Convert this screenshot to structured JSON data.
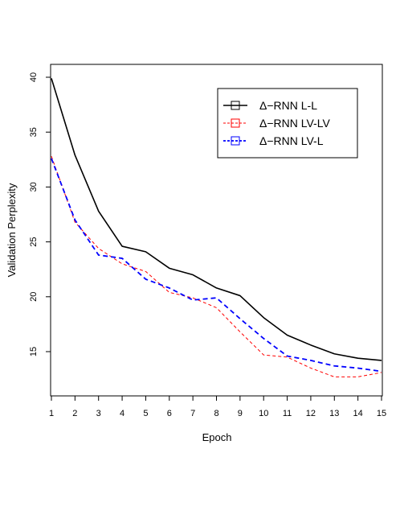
{
  "chart_data": {
    "type": "line",
    "title": "",
    "xlabel": "Epoch",
    "ylabel": "Validation Perplexity",
    "xlim": [
      1,
      15
    ],
    "ylim": [
      11,
      41
    ],
    "x": [
      1,
      2,
      3,
      4,
      5,
      6,
      7,
      8,
      9,
      10,
      11,
      12,
      13,
      14,
      15
    ],
    "x_ticks": [
      1,
      2,
      3,
      4,
      5,
      6,
      7,
      8,
      9,
      10,
      11,
      12,
      13,
      14,
      15
    ],
    "y_ticks": [
      15,
      20,
      25,
      30,
      35,
      40
    ],
    "grid": false,
    "legend_position": "top-right",
    "series": [
      {
        "name": "Δ−RNN L-L",
        "color": "#000000",
        "line_style": "solid",
        "values": [
          39.9,
          32.9,
          27.8,
          24.6,
          24.1,
          22.6,
          22.0,
          20.8,
          20.1,
          18.1,
          16.5,
          15.6,
          14.8,
          14.4,
          14.2
        ]
      },
      {
        "name": "Δ−RNN LV-LV",
        "color": "#ff0000",
        "line_style": "dashed-thin",
        "values": [
          32.8,
          26.8,
          24.4,
          23.0,
          22.3,
          20.4,
          19.9,
          19.0,
          16.8,
          14.7,
          14.5,
          13.5,
          12.7,
          12.7,
          13.1
        ]
      },
      {
        "name": "Δ−RNN LV-L",
        "color": "#0000ff",
        "line_style": "dashed-thick",
        "values": [
          32.6,
          27.0,
          23.8,
          23.5,
          21.6,
          20.8,
          19.7,
          19.9,
          18.0,
          16.2,
          14.6,
          14.2,
          13.7,
          13.5,
          13.2
        ]
      }
    ]
  }
}
